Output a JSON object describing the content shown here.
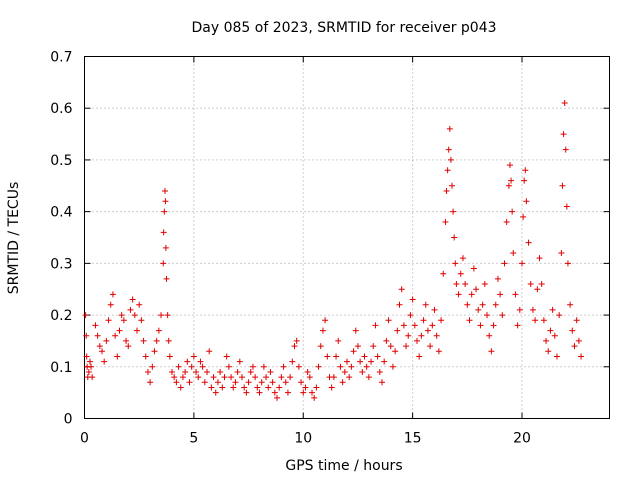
{
  "chart_data": {
    "type": "scatter",
    "title": "Day 085 of 2023, SRMTID for receiver p043",
    "xlabel": "GPS time / hours",
    "ylabel": "SRMTID / TECUs",
    "xlim": [
      0,
      24
    ],
    "ylim": [
      0,
      0.7
    ],
    "x_ticks": [
      0,
      5,
      10,
      15,
      20
    ],
    "x_tick_labels": [
      "0",
      "5",
      "10",
      "15",
      "20"
    ],
    "y_ticks": [
      0,
      0.1,
      0.2,
      0.3,
      0.4,
      0.5,
      0.6,
      0.7
    ],
    "y_tick_labels": [
      "0",
      "0.1",
      "0.2",
      "0.3",
      "0.4",
      "0.5",
      "0.6",
      "0.7"
    ],
    "grid": true,
    "marker": "plus",
    "color": "#e00000",
    "series": [
      {
        "name": "SRMTID",
        "points": [
          [
            0.05,
            0.2
          ],
          [
            0.08,
            0.16
          ],
          [
            0.1,
            0.12
          ],
          [
            0.12,
            0.1
          ],
          [
            0.15,
            0.08
          ],
          [
            0.2,
            0.09
          ],
          [
            0.25,
            0.11
          ],
          [
            0.3,
            0.1
          ],
          [
            0.35,
            0.08
          ],
          [
            0.5,
            0.18
          ],
          [
            0.6,
            0.16
          ],
          [
            0.7,
            0.14
          ],
          [
            0.8,
            0.13
          ],
          [
            0.9,
            0.11
          ],
          [
            1.0,
            0.15
          ],
          [
            1.1,
            0.19
          ],
          [
            1.2,
            0.22
          ],
          [
            1.3,
            0.24
          ],
          [
            1.4,
            0.16
          ],
          [
            1.5,
            0.12
          ],
          [
            1.6,
            0.17
          ],
          [
            1.7,
            0.2
          ],
          [
            1.8,
            0.19
          ],
          [
            1.9,
            0.15
          ],
          [
            2.0,
            0.14
          ],
          [
            2.1,
            0.21
          ],
          [
            2.2,
            0.23
          ],
          [
            2.3,
            0.2
          ],
          [
            2.4,
            0.17
          ],
          [
            2.5,
            0.22
          ],
          [
            2.6,
            0.19
          ],
          [
            2.7,
            0.15
          ],
          [
            2.8,
            0.12
          ],
          [
            2.9,
            0.09
          ],
          [
            3.0,
            0.07
          ],
          [
            3.1,
            0.1
          ],
          [
            3.2,
            0.13
          ],
          [
            3.3,
            0.15
          ],
          [
            3.4,
            0.17
          ],
          [
            3.5,
            0.2
          ],
          [
            3.6,
            0.3
          ],
          [
            3.62,
            0.36
          ],
          [
            3.65,
            0.4
          ],
          [
            3.68,
            0.44
          ],
          [
            3.7,
            0.42
          ],
          [
            3.72,
            0.33
          ],
          [
            3.75,
            0.27
          ],
          [
            3.8,
            0.2
          ],
          [
            3.85,
            0.15
          ],
          [
            3.9,
            0.12
          ],
          [
            4.0,
            0.09
          ],
          [
            4.1,
            0.08
          ],
          [
            4.2,
            0.07
          ],
          [
            4.3,
            0.1
          ],
          [
            4.4,
            0.06
          ],
          [
            4.5,
            0.08
          ],
          [
            4.6,
            0.09
          ],
          [
            4.7,
            0.11
          ],
          [
            4.8,
            0.07
          ],
          [
            4.9,
            0.1
          ],
          [
            5.0,
            0.12
          ],
          [
            5.1,
            0.09
          ],
          [
            5.2,
            0.08
          ],
          [
            5.3,
            0.11
          ],
          [
            5.4,
            0.1
          ],
          [
            5.5,
            0.07
          ],
          [
            5.6,
            0.09
          ],
          [
            5.7,
            0.13
          ],
          [
            5.8,
            0.06
          ],
          [
            5.9,
            0.08
          ],
          [
            6.0,
            0.05
          ],
          [
            6.1,
            0.07
          ],
          [
            6.2,
            0.09
          ],
          [
            6.3,
            0.06
          ],
          [
            6.4,
            0.08
          ],
          [
            6.5,
            0.12
          ],
          [
            6.6,
            0.1
          ],
          [
            6.7,
            0.08
          ],
          [
            6.8,
            0.06
          ],
          [
            6.9,
            0.07
          ],
          [
            7.0,
            0.09
          ],
          [
            7.1,
            0.11
          ],
          [
            7.2,
            0.08
          ],
          [
            7.3,
            0.06
          ],
          [
            7.4,
            0.05
          ],
          [
            7.5,
            0.07
          ],
          [
            7.6,
            0.09
          ],
          [
            7.7,
            0.1
          ],
          [
            7.8,
            0.08
          ],
          [
            7.9,
            0.06
          ],
          [
            8.0,
            0.05
          ],
          [
            8.1,
            0.07
          ],
          [
            8.2,
            0.1
          ],
          [
            8.3,
            0.08
          ],
          [
            8.4,
            0.06
          ],
          [
            8.5,
            0.09
          ],
          [
            8.6,
            0.07
          ],
          [
            8.7,
            0.05
          ],
          [
            8.8,
            0.04
          ],
          [
            8.9,
            0.06
          ],
          [
            9.0,
            0.08
          ],
          [
            9.1,
            0.1
          ],
          [
            9.2,
            0.07
          ],
          [
            9.3,
            0.05
          ],
          [
            9.4,
            0.08
          ],
          [
            9.5,
            0.11
          ],
          [
            9.6,
            0.14
          ],
          [
            9.7,
            0.15
          ],
          [
            9.8,
            0.1
          ],
          [
            9.9,
            0.07
          ],
          [
            10.0,
            0.05
          ],
          [
            10.1,
            0.06
          ],
          [
            10.2,
            0.09
          ],
          [
            10.3,
            0.08
          ],
          [
            10.4,
            0.05
          ],
          [
            10.5,
            0.04
          ],
          [
            10.6,
            0.06
          ],
          [
            10.7,
            0.1
          ],
          [
            10.8,
            0.14
          ],
          [
            10.9,
            0.17
          ],
          [
            11.0,
            0.19
          ],
          [
            11.1,
            0.12
          ],
          [
            11.2,
            0.08
          ],
          [
            11.3,
            0.06
          ],
          [
            11.4,
            0.08
          ],
          [
            11.5,
            0.12
          ],
          [
            11.6,
            0.15
          ],
          [
            11.7,
            0.1
          ],
          [
            11.8,
            0.07
          ],
          [
            11.9,
            0.09
          ],
          [
            12.0,
            0.11
          ],
          [
            12.1,
            0.08
          ],
          [
            12.2,
            0.1
          ],
          [
            12.3,
            0.13
          ],
          [
            12.4,
            0.17
          ],
          [
            12.5,
            0.14
          ],
          [
            12.6,
            0.11
          ],
          [
            12.7,
            0.09
          ],
          [
            12.8,
            0.12
          ],
          [
            12.9,
            0.1
          ],
          [
            13.0,
            0.08
          ],
          [
            13.1,
            0.11
          ],
          [
            13.2,
            0.14
          ],
          [
            13.3,
            0.18
          ],
          [
            13.4,
            0.12
          ],
          [
            13.5,
            0.09
          ],
          [
            13.6,
            0.07
          ],
          [
            13.7,
            0.11
          ],
          [
            13.8,
            0.15
          ],
          [
            13.9,
            0.19
          ],
          [
            14.0,
            0.14
          ],
          [
            14.1,
            0.1
          ],
          [
            14.2,
            0.13
          ],
          [
            14.3,
            0.17
          ],
          [
            14.4,
            0.22
          ],
          [
            14.5,
            0.25
          ],
          [
            14.6,
            0.18
          ],
          [
            14.7,
            0.14
          ],
          [
            14.8,
            0.16
          ],
          [
            14.9,
            0.2
          ],
          [
            15.0,
            0.23
          ],
          [
            15.1,
            0.18
          ],
          [
            15.2,
            0.15
          ],
          [
            15.3,
            0.12
          ],
          [
            15.4,
            0.16
          ],
          [
            15.5,
            0.19
          ],
          [
            15.6,
            0.22
          ],
          [
            15.7,
            0.17
          ],
          [
            15.8,
            0.14
          ],
          [
            15.9,
            0.18
          ],
          [
            16.0,
            0.21
          ],
          [
            16.1,
            0.16
          ],
          [
            16.2,
            0.13
          ],
          [
            16.3,
            0.19
          ],
          [
            16.4,
            0.28
          ],
          [
            16.5,
            0.38
          ],
          [
            16.55,
            0.44
          ],
          [
            16.6,
            0.48
          ],
          [
            16.65,
            0.52
          ],
          [
            16.7,
            0.56
          ],
          [
            16.75,
            0.5
          ],
          [
            16.8,
            0.45
          ],
          [
            16.85,
            0.4
          ],
          [
            16.9,
            0.35
          ],
          [
            16.95,
            0.3
          ],
          [
            17.0,
            0.26
          ],
          [
            17.1,
            0.24
          ],
          [
            17.2,
            0.28
          ],
          [
            17.3,
            0.31
          ],
          [
            17.4,
            0.26
          ],
          [
            17.5,
            0.22
          ],
          [
            17.6,
            0.19
          ],
          [
            17.7,
            0.24
          ],
          [
            17.8,
            0.29
          ],
          [
            17.9,
            0.25
          ],
          [
            18.0,
            0.21
          ],
          [
            18.1,
            0.18
          ],
          [
            18.2,
            0.22
          ],
          [
            18.3,
            0.26
          ],
          [
            18.4,
            0.2
          ],
          [
            18.5,
            0.16
          ],
          [
            18.6,
            0.13
          ],
          [
            18.7,
            0.18
          ],
          [
            18.8,
            0.22
          ],
          [
            18.9,
            0.27
          ],
          [
            19.0,
            0.24
          ],
          [
            19.1,
            0.2
          ],
          [
            19.2,
            0.3
          ],
          [
            19.3,
            0.38
          ],
          [
            19.4,
            0.45
          ],
          [
            19.45,
            0.49
          ],
          [
            19.5,
            0.46
          ],
          [
            19.55,
            0.4
          ],
          [
            19.6,
            0.32
          ],
          [
            19.7,
            0.24
          ],
          [
            19.8,
            0.18
          ],
          [
            19.9,
            0.21
          ],
          [
            20.0,
            0.3
          ],
          [
            20.05,
            0.39
          ],
          [
            20.1,
            0.46
          ],
          [
            20.15,
            0.48
          ],
          [
            20.2,
            0.42
          ],
          [
            20.3,
            0.34
          ],
          [
            20.4,
            0.26
          ],
          [
            20.5,
            0.21
          ],
          [
            20.6,
            0.19
          ],
          [
            20.7,
            0.25
          ],
          [
            20.8,
            0.31
          ],
          [
            20.9,
            0.26
          ],
          [
            21.0,
            0.19
          ],
          [
            21.1,
            0.15
          ],
          [
            21.2,
            0.13
          ],
          [
            21.3,
            0.17
          ],
          [
            21.4,
            0.21
          ],
          [
            21.5,
            0.16
          ],
          [
            21.6,
            0.12
          ],
          [
            21.7,
            0.2
          ],
          [
            21.8,
            0.32
          ],
          [
            21.85,
            0.45
          ],
          [
            21.9,
            0.55
          ],
          [
            21.95,
            0.61
          ],
          [
            22.0,
            0.52
          ],
          [
            22.05,
            0.41
          ],
          [
            22.1,
            0.3
          ],
          [
            22.2,
            0.22
          ],
          [
            22.3,
            0.17
          ],
          [
            22.4,
            0.14
          ],
          [
            22.5,
            0.19
          ],
          [
            22.6,
            0.15
          ],
          [
            22.7,
            0.12
          ]
        ]
      }
    ]
  }
}
